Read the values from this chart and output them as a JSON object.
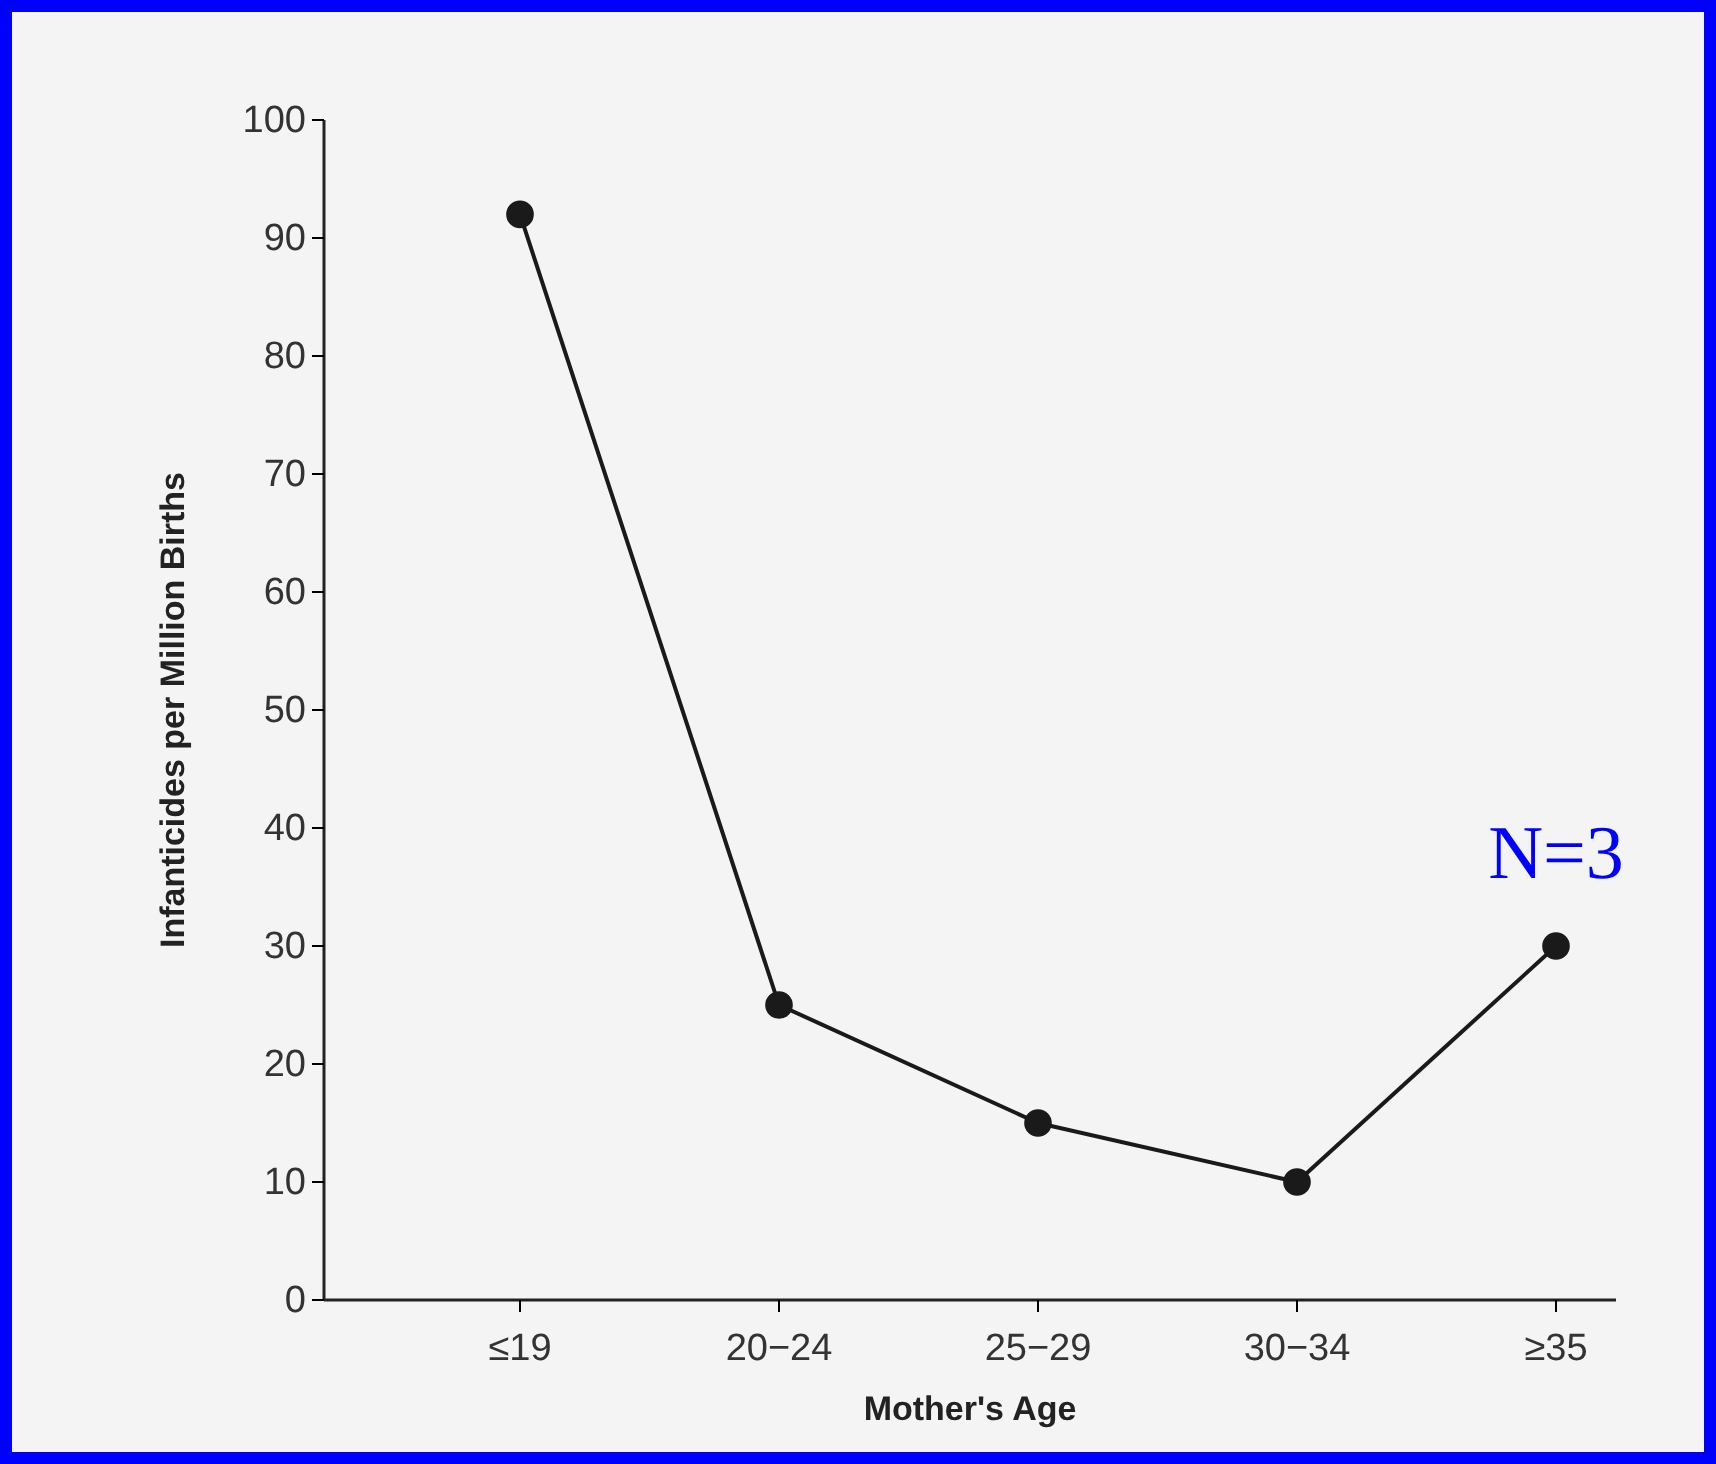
{
  "chart_data": {
    "type": "line",
    "xlabel": "Mother's Age",
    "ylabel": "Infanticides per Million Births",
    "categories": [
      "≤19",
      "20−24",
      "25−29",
      "30−34",
      "≥35"
    ],
    "series": [
      {
        "color": "#1a1a1a",
        "values": [
          92,
          25,
          15,
          10,
          30
        ]
      }
    ],
    "ylim": [
      0,
      100
    ],
    "yticks": [
      0,
      10,
      20,
      30,
      40,
      50,
      60,
      70,
      80,
      90,
      100
    ],
    "marker": "circle",
    "line_style": "solid",
    "grid": false,
    "annotations": [
      {
        "text": "N=3",
        "x": "≥35",
        "y": 30
      }
    ]
  }
}
